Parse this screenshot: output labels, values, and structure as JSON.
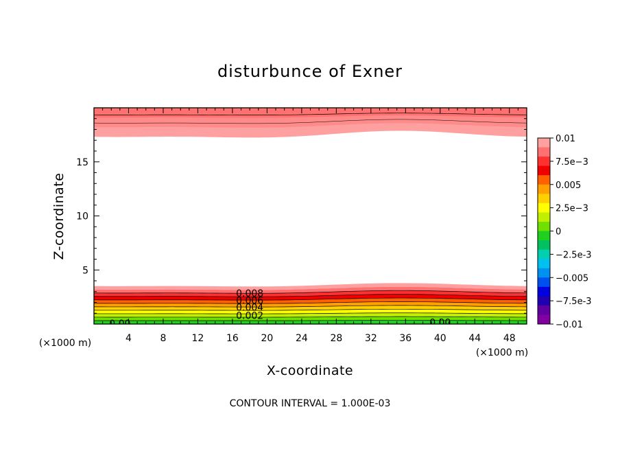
{
  "chart_data": {
    "type": "heatmap",
    "title": "disturbunce of Exner",
    "xlabel": "X-coordinate",
    "ylabel": "Z-coordinate",
    "x_unit_left": "(×1000 m)",
    "x_unit_right": "(×1000 m)",
    "xlim": [
      0,
      50
    ],
    "ylim": [
      0,
      20
    ],
    "x_ticks": [
      4,
      8,
      12,
      16,
      20,
      24,
      28,
      32,
      36,
      40,
      44,
      48
    ],
    "y_ticks": [
      5,
      10,
      15
    ],
    "contour_interval_text": "CONTOUR INTERVAL = 1.000E-03",
    "colorbar": {
      "labels": [
        "0.01",
        "7.5e-3",
        "0.005",
        "2.5e-3",
        "0",
        "-2.5e-3",
        "-0.005",
        "-7.5e-3",
        "-0.01"
      ],
      "levels": [
        0.01,
        0.0075,
        0.005,
        0.0025,
        0,
        -0.0025,
        -0.005,
        -0.0075,
        -0.01
      ],
      "colors": [
        "#ffa0a0",
        "#ff7070",
        "#ff3030",
        "#f00000",
        "#ff6000",
        "#ffa000",
        "#ffd000",
        "#ffff00",
        "#c0f000",
        "#70e000",
        "#20d020",
        "#00c060",
        "#00d0b0",
        "#00c0f0",
        "#0090f0",
        "#0050f0",
        "#0000e0",
        "#2000b0",
        "#6000a0",
        "#8000a0"
      ]
    },
    "bottom_layer": {
      "top_base": 3.6,
      "top_amplitude": 0.25,
      "note": "positive disturbance decreasing from ~0.01 at z≈3.6 to ~0 at surface"
    },
    "top_layer": {
      "bottom_base": 17.5,
      "bottom_amplitude": 0.5
    },
    "contour_labels": [
      {
        "text": "0.008",
        "x": 18.0,
        "z": 2.85
      },
      {
        "text": "0.006",
        "x": 18.0,
        "z": 2.2
      },
      {
        "text": "0.004",
        "x": 18.0,
        "z": 1.55
      },
      {
        "text": "0.002",
        "x": 18.0,
        "z": 0.8
      },
      {
        "text": "0.00",
        "x": 3.0,
        "z": 0.05
      },
      {
        "text": "0.00",
        "x": 40.0,
        "z": 0.15
      }
    ]
  }
}
